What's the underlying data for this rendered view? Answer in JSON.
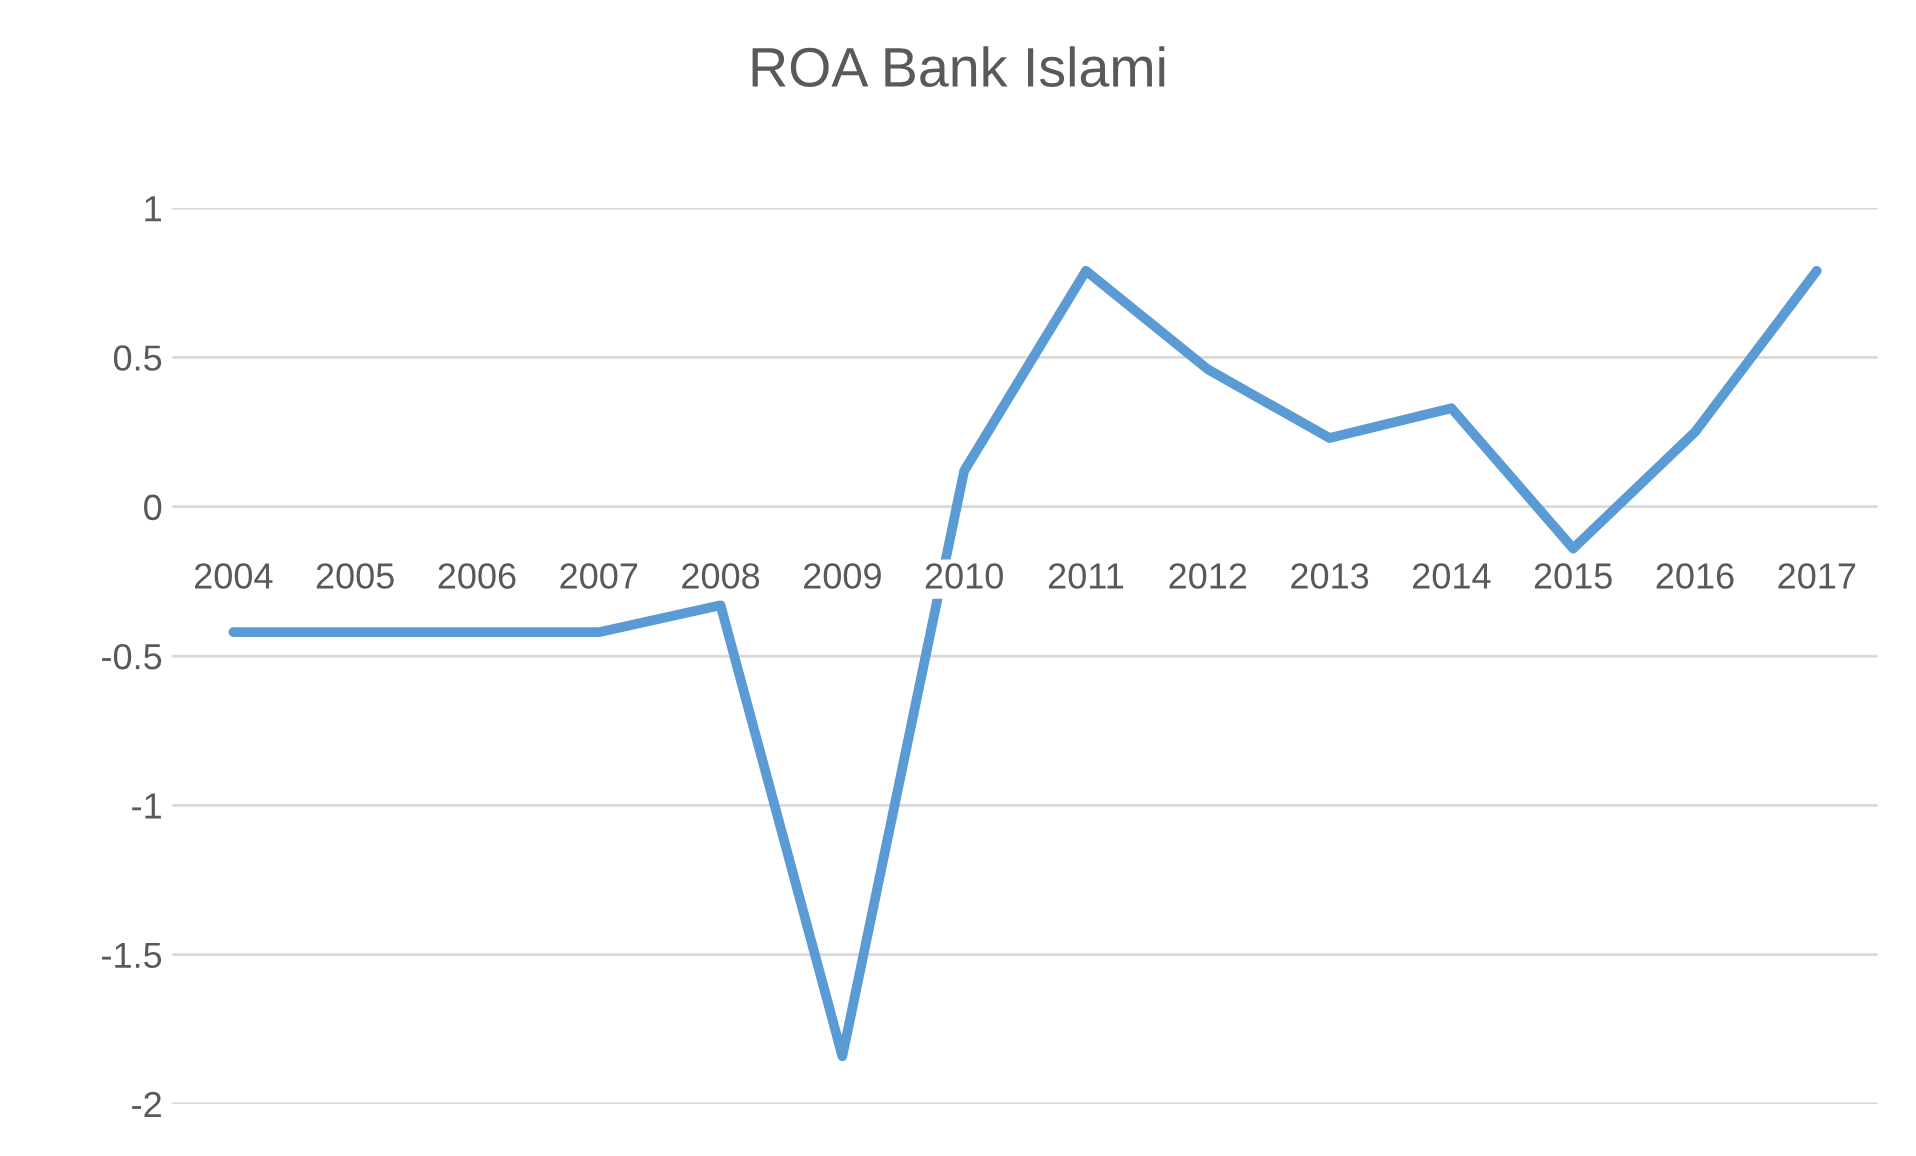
{
  "chart_data": {
    "type": "line",
    "title": "ROA Bank Islami",
    "categories": [
      "2004",
      "2005",
      "2006",
      "2007",
      "2008",
      "2009",
      "2010",
      "2011",
      "2012",
      "2013",
      "2014",
      "2015",
      "2016",
      "2017"
    ],
    "series": [
      {
        "color": "#5b9bd5",
        "values": [
          -0.42,
          -0.42,
          -0.42,
          -0.42,
          -0.33,
          -1.84,
          0.12,
          0.79,
          0.46,
          0.23,
          0.33,
          -0.14,
          0.25,
          0.79
        ]
      }
    ],
    "ylim": [
      -2,
      1
    ],
    "yticks": [
      {
        "value": 1,
        "label": "1"
      },
      0.5,
      0,
      -0.5,
      {
        "value": -1,
        "label": "-1"
      },
      -1.5,
      {
        "value": -2,
        "label": "-2"
      }
    ],
    "grid": "y",
    "marker": "none",
    "line_style": "solid"
  }
}
